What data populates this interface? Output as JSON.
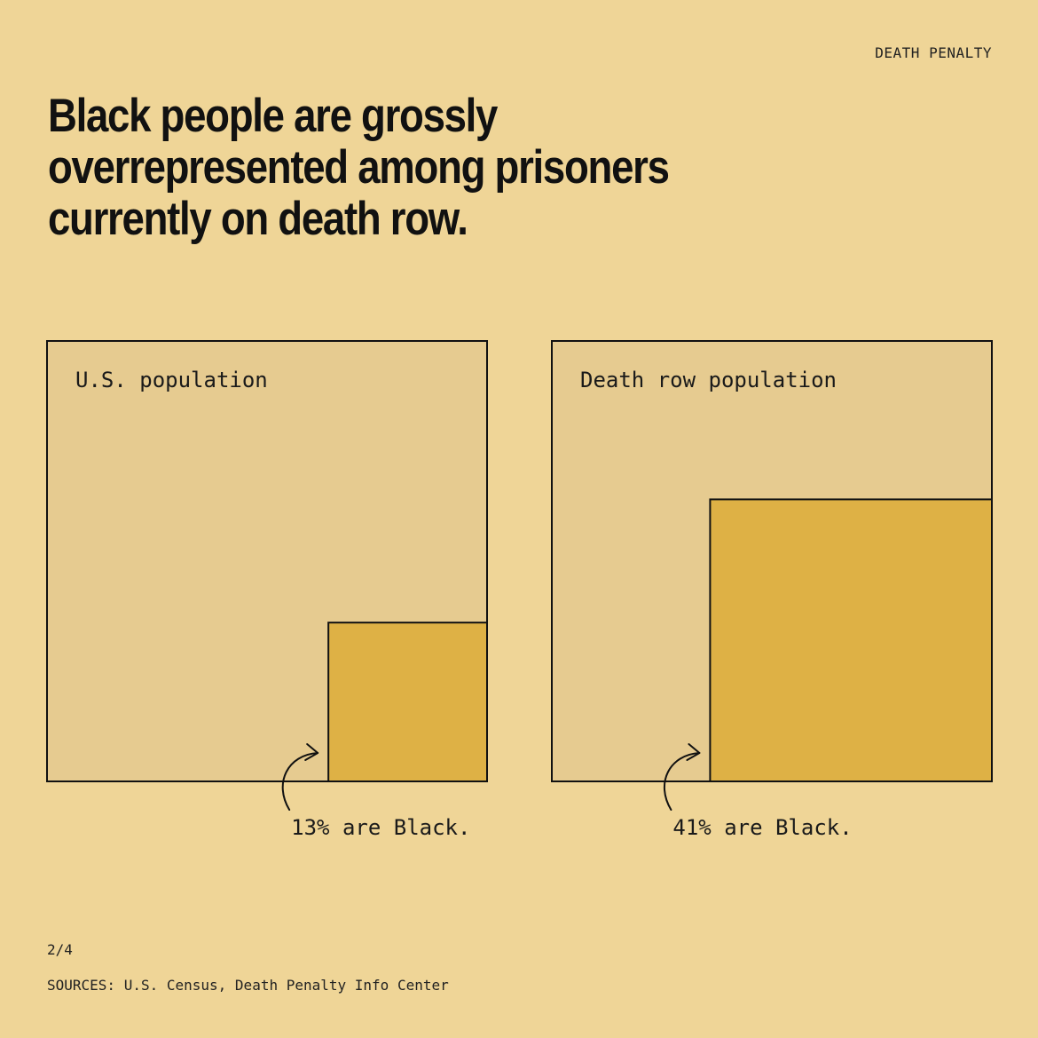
{
  "section_label": "DEATH PENALTY",
  "headline": "Black people are grossly\noverrepresented among prisoners\ncurrently on death row.",
  "colors": {
    "background": "#efd597",
    "panel": "#e6cb90",
    "highlight": "#deb145",
    "stroke": "#111111"
  },
  "icons": [
    "curved-arrow-icon"
  ],
  "chart_data": [
    {
      "type": "area",
      "panel_label": "U.S. population",
      "share_black_percent": 13,
      "annotation": "13% are Black."
    },
    {
      "type": "area",
      "panel_label": "Death row population",
      "share_black_percent": 41,
      "annotation": "41% are Black."
    }
  ],
  "footer": {
    "page": "2/4",
    "sources": "SOURCES: U.S. Census, Death Penalty Info Center"
  }
}
